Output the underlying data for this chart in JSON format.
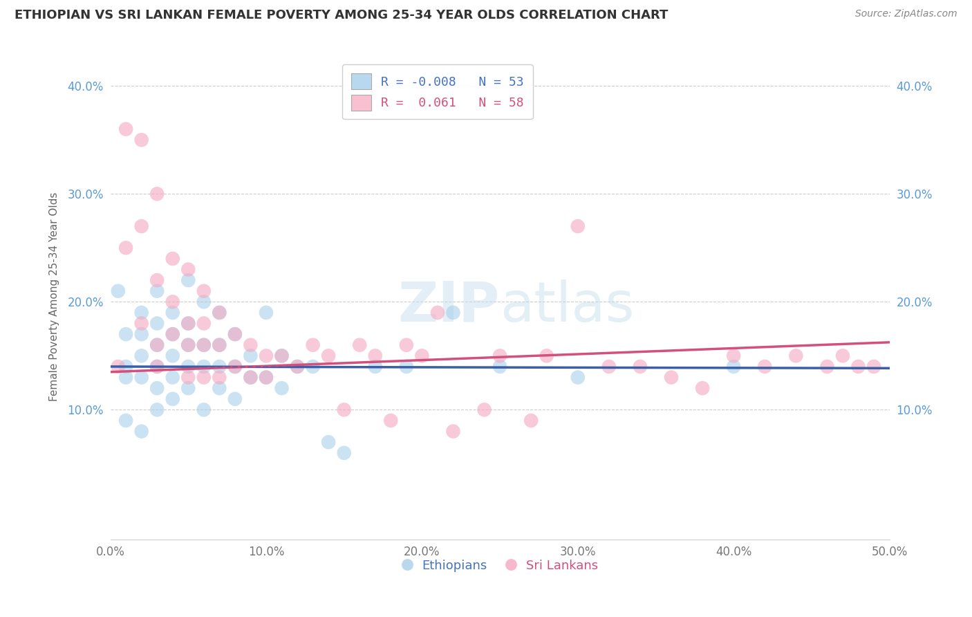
{
  "title": "ETHIOPIAN VS SRI LANKAN FEMALE POVERTY AMONG 25-34 YEAR OLDS CORRELATION CHART",
  "source": "Source: ZipAtlas.com",
  "ylabel": "Female Poverty Among 25-34 Year Olds",
  "xlim": [
    0.0,
    0.5
  ],
  "ylim": [
    -0.02,
    0.43
  ],
  "xtick_labels": [
    "0.0%",
    "10.0%",
    "20.0%",
    "30.0%",
    "40.0%",
    "50.0%"
  ],
  "xtick_vals": [
    0.0,
    0.1,
    0.2,
    0.3,
    0.4,
    0.5
  ],
  "ytick_labels": [
    "10.0%",
    "20.0%",
    "30.0%",
    "40.0%"
  ],
  "ytick_vals": [
    0.1,
    0.2,
    0.3,
    0.4
  ],
  "background_color": "#ffffff",
  "grid_color": "#cccccc",
  "ethiopian_color": "#a8cfe8",
  "sri_lankan_color": "#f4a8c0",
  "trend_eth_color": "#3a5fa8",
  "trend_sri_color": "#d4507a",
  "watermark_color": "#d0e4f0",
  "r_eth": -0.008,
  "n_eth": 53,
  "r_sri": 0.061,
  "n_sri": 58,
  "eth_x": [
    0.005,
    0.01,
    0.01,
    0.01,
    0.01,
    0.02,
    0.02,
    0.02,
    0.02,
    0.02,
    0.03,
    0.03,
    0.03,
    0.03,
    0.03,
    0.03,
    0.04,
    0.04,
    0.04,
    0.04,
    0.04,
    0.05,
    0.05,
    0.05,
    0.05,
    0.05,
    0.06,
    0.06,
    0.06,
    0.06,
    0.07,
    0.07,
    0.07,
    0.07,
    0.08,
    0.08,
    0.08,
    0.09,
    0.09,
    0.1,
    0.1,
    0.11,
    0.11,
    0.12,
    0.13,
    0.14,
    0.15,
    0.17,
    0.19,
    0.22,
    0.25,
    0.3,
    0.4
  ],
  "eth_y": [
    0.21,
    0.14,
    0.17,
    0.13,
    0.09,
    0.19,
    0.17,
    0.15,
    0.13,
    0.08,
    0.21,
    0.18,
    0.16,
    0.14,
    0.12,
    0.1,
    0.19,
    0.17,
    0.15,
    0.13,
    0.11,
    0.22,
    0.18,
    0.16,
    0.14,
    0.12,
    0.2,
    0.16,
    0.14,
    0.1,
    0.19,
    0.16,
    0.14,
    0.12,
    0.17,
    0.14,
    0.11,
    0.15,
    0.13,
    0.19,
    0.13,
    0.15,
    0.12,
    0.14,
    0.14,
    0.07,
    0.06,
    0.14,
    0.14,
    0.19,
    0.14,
    0.13,
    0.14
  ],
  "sri_x": [
    0.005,
    0.01,
    0.01,
    0.02,
    0.02,
    0.02,
    0.03,
    0.03,
    0.03,
    0.03,
    0.04,
    0.04,
    0.04,
    0.05,
    0.05,
    0.05,
    0.05,
    0.06,
    0.06,
    0.06,
    0.06,
    0.07,
    0.07,
    0.07,
    0.08,
    0.08,
    0.09,
    0.09,
    0.1,
    0.1,
    0.11,
    0.12,
    0.13,
    0.14,
    0.15,
    0.16,
    0.17,
    0.18,
    0.19,
    0.2,
    0.21,
    0.22,
    0.24,
    0.25,
    0.27,
    0.28,
    0.3,
    0.32,
    0.34,
    0.36,
    0.38,
    0.4,
    0.42,
    0.44,
    0.46,
    0.47,
    0.48,
    0.49
  ],
  "sri_y": [
    0.14,
    0.36,
    0.25,
    0.35,
    0.27,
    0.18,
    0.3,
    0.22,
    0.16,
    0.14,
    0.24,
    0.2,
    0.17,
    0.23,
    0.18,
    0.16,
    0.13,
    0.21,
    0.18,
    0.16,
    0.13,
    0.19,
    0.16,
    0.13,
    0.17,
    0.14,
    0.16,
    0.13,
    0.15,
    0.13,
    0.15,
    0.14,
    0.16,
    0.15,
    0.1,
    0.16,
    0.15,
    0.09,
    0.16,
    0.15,
    0.19,
    0.08,
    0.1,
    0.15,
    0.09,
    0.15,
    0.27,
    0.14,
    0.14,
    0.13,
    0.12,
    0.15,
    0.14,
    0.15,
    0.14,
    0.15,
    0.14,
    0.14
  ]
}
